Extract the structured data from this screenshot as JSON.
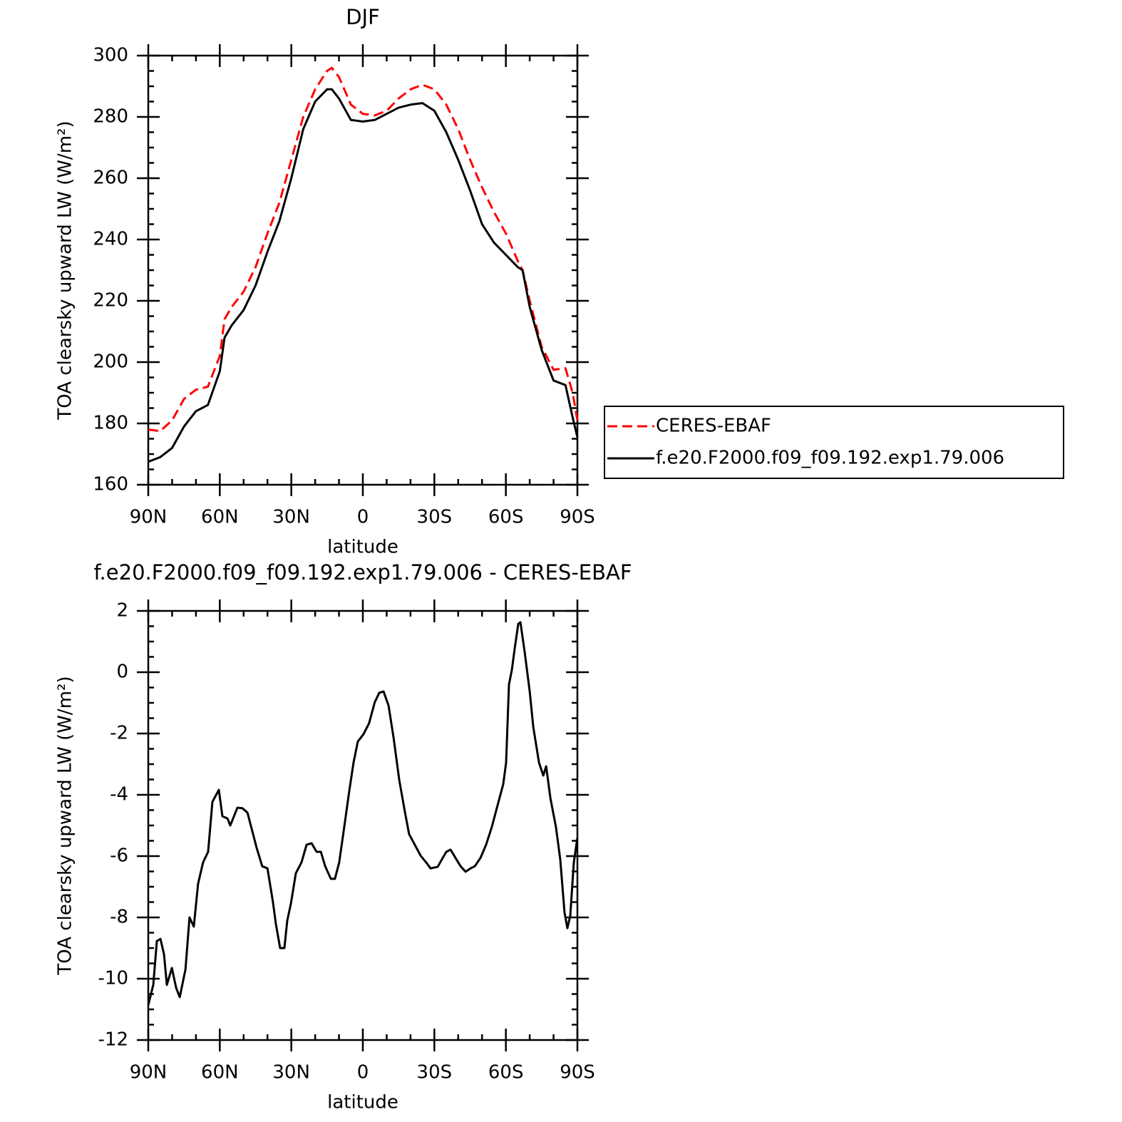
{
  "chart_data": [
    {
      "type": "line",
      "title": "DJF",
      "xlabel": "latitude",
      "ylabel": "TOA clearsky upward LW (W/m²)",
      "x": [
        90,
        85,
        80,
        75,
        70,
        65,
        60,
        58,
        55,
        50,
        45,
        40,
        35,
        30,
        25,
        20,
        15,
        13,
        10,
        5,
        0,
        -5,
        -10,
        -15,
        -20,
        -25,
        -30,
        -35,
        -40,
        -45,
        -50,
        -55,
        -60,
        -65,
        -67,
        -70,
        -75,
        -80,
        -85,
        -88,
        -90
      ],
      "series": [
        {
          "name": "CERES-EBAF",
          "color": "#ff0000",
          "dashed": true,
          "values": [
            178,
            177.5,
            181,
            188,
            191,
            192,
            202,
            214,
            218,
            223,
            231,
            242,
            252,
            266,
            280,
            289,
            295,
            296,
            293,
            284,
            281,
            280.5,
            282,
            286,
            289,
            290.5,
            289,
            284,
            276,
            266,
            257,
            249,
            242,
            233,
            230,
            220,
            205,
            197.5,
            198,
            190,
            181
          ]
        },
        {
          "name": "f.e20.F2000.f09_f09.192.exp1.79.006",
          "color": "#000000",
          "dashed": false,
          "values": [
            167.5,
            169,
            172,
            179,
            184,
            186,
            197,
            208,
            212,
            217,
            225,
            236,
            246,
            260,
            276,
            285,
            289,
            289,
            286,
            279,
            278.5,
            279,
            281,
            283,
            284,
            284.5,
            282,
            275,
            266,
            256,
            245,
            239,
            235,
            231,
            230,
            218,
            204,
            194,
            192.5,
            182,
            175.5
          ]
        }
      ],
      "xlim": [
        90,
        -90
      ],
      "xticks": [
        {
          "value": 90,
          "label": "90N"
        },
        {
          "value": 60,
          "label": "60N"
        },
        {
          "value": 30,
          "label": "30N"
        },
        0,
        {
          "value": -30,
          "label": "30S"
        },
        {
          "value": -60,
          "label": "60S"
        },
        {
          "value": -90,
          "label": "90S"
        }
      ],
      "ylim": [
        160,
        300
      ],
      "yticks": [
        160,
        180,
        200,
        220,
        240,
        260,
        280,
        300
      ],
      "legend": "outside right"
    },
    {
      "type": "line",
      "title": "f.e20.F2000.f09_f09.192.exp1.79.006 - CERES-EBAF",
      "xlabel": "latitude",
      "ylabel": "TOA clearsky upward LW (W/m²)",
      "x": [
        90,
        87.9,
        86.4,
        84.9,
        83.4,
        82.2,
        80.1,
        78.3,
        76.8,
        74.4,
        72.7,
        70.9,
        69.1,
        67,
        64.9,
        63.1,
        60.4,
        58.9,
        56.8,
        55.6,
        52.6,
        50.5,
        48.4,
        44.5,
        42.2,
        40,
        37.7,
        36.5,
        34.7,
        32.9,
        31.7,
        30.2,
        28.1,
        25.7,
        23.6,
        21.5,
        19.4,
        17.6,
        15.8,
        13.4,
        11.7,
        9.9,
        7.8,
        5.7,
        3.9,
        2.1,
        -0.3,
        -2.6,
        -5,
        -6.9,
        -8.7,
        -10.8,
        -12.9,
        -15.3,
        -17.7,
        -19.4,
        -21.8,
        -24.2,
        -26.6,
        -28.4,
        -31.4,
        -33.2,
        -35,
        -36.8,
        -39.2,
        -41,
        -43.1,
        -45.2,
        -47,
        -49.4,
        -51.7,
        -54.1,
        -56.5,
        -58.9,
        -60.1,
        -61.3,
        -62.5,
        -63.7,
        -65.2,
        -66.1,
        -67.9,
        -70,
        -71.5,
        -73.9,
        -75.7,
        -76.9,
        -78.7,
        -81,
        -82.8,
        -84.6,
        -85.8,
        -87,
        -88.5,
        -90
      ],
      "values": [
        -10.86,
        -10.2,
        -8.77,
        -8.7,
        -9.2,
        -10.2,
        -9.65,
        -10.3,
        -10.6,
        -9.7,
        -8,
        -8.3,
        -6.9,
        -6.2,
        -5.86,
        -4.23,
        -3.84,
        -4.7,
        -4.77,
        -5,
        -4.42,
        -4.44,
        -4.58,
        -5.74,
        -6.33,
        -6.4,
        -7.5,
        -8.2,
        -9,
        -9,
        -8.1,
        -7.56,
        -6.56,
        -6.2,
        -5.63,
        -5.58,
        -5.86,
        -5.86,
        -6.33,
        -6.74,
        -6.74,
        -6.2,
        -5.05,
        -3.88,
        -2.95,
        -2.26,
        -2.02,
        -1.67,
        -0.98,
        -0.67,
        -0.63,
        -1.09,
        -2.14,
        -3.53,
        -4.58,
        -5.28,
        -5.63,
        -5.98,
        -6.21,
        -6.4,
        -6.35,
        -6.1,
        -5.86,
        -5.79,
        -6.1,
        -6.33,
        -6.51,
        -6.4,
        -6.33,
        -6.05,
        -5.63,
        -5.05,
        -4.35,
        -3.65,
        -2.95,
        -0.4,
        0.07,
        0.77,
        1.58,
        1.63,
        0.65,
        -0.63,
        -1.79,
        -2.95,
        -3.37,
        -3.07,
        -4.12,
        -5.05,
        -6.1,
        -7.84,
        -8.35,
        -7.95,
        -6.21,
        -5.4
      ],
      "color": "#000000",
      "xlim": [
        90,
        -90
      ],
      "xticks": [
        {
          "value": 90,
          "label": "90N"
        },
        {
          "value": 60,
          "label": "60N"
        },
        {
          "value": 30,
          "label": "30N"
        },
        0,
        {
          "value": -30,
          "label": "30S"
        },
        {
          "value": -60,
          "label": "60S"
        },
        {
          "value": -90,
          "label": "90S"
        }
      ],
      "ylim": [
        -12,
        2
      ],
      "yticks": [
        -12,
        -10,
        -8,
        -6,
        -4,
        -2,
        0,
        2
      ]
    }
  ]
}
